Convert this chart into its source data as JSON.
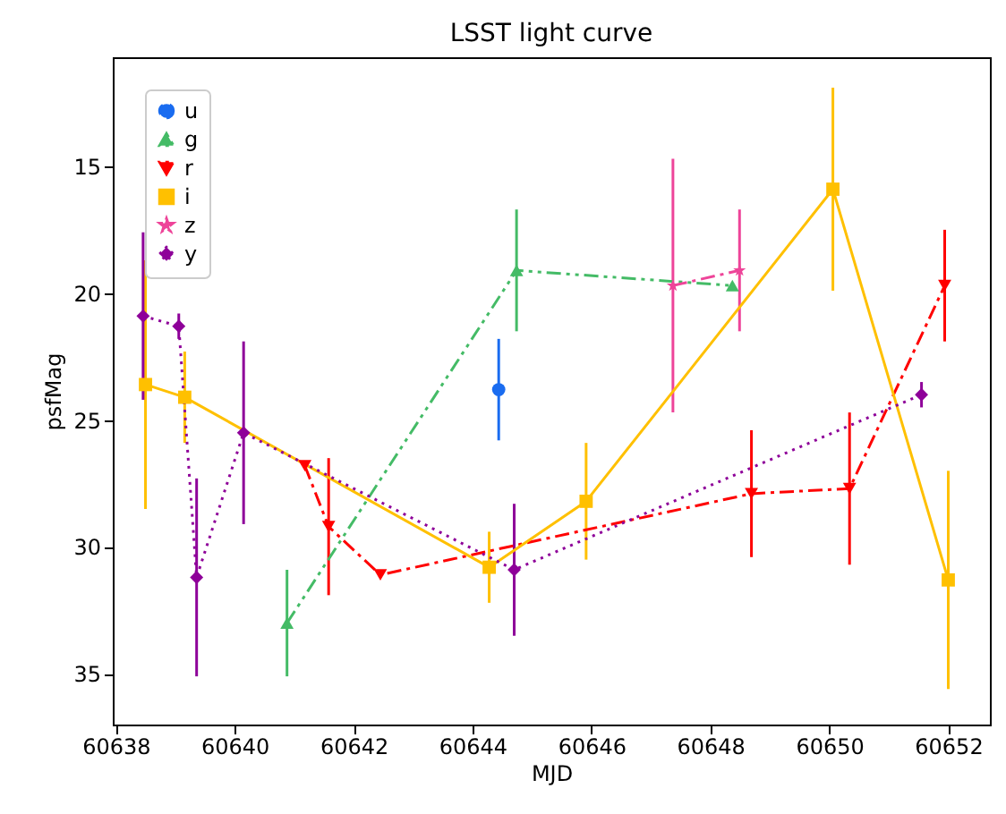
{
  "chart_data": {
    "type": "line",
    "title": "LSST light curve",
    "xlabel": "MJD",
    "ylabel": "psfMag",
    "xlim": [
      60637.95,
      60652.7
    ],
    "ylim": [
      37.0,
      10.7
    ],
    "xticks": [
      60638,
      60640,
      60642,
      60644,
      60646,
      60648,
      60650,
      60652
    ],
    "yticks": [
      15,
      20,
      25,
      30,
      35
    ],
    "grid": false,
    "legend": "top left",
    "series": [
      {
        "name": "u",
        "color": "#1a6cf0",
        "marker": "circle",
        "line_style": "dashed",
        "x": [
          60644.44
        ],
        "values": [
          23.8
        ],
        "errors": [
          2.0
        ]
      },
      {
        "name": "g",
        "color": "#44bb66",
        "marker": "triangle",
        "line_style": "dashdotdot",
        "x": [
          60640.88,
          60644.74,
          60648.37
        ],
        "values": [
          33.0,
          19.1,
          19.7
        ],
        "errors": [
          2.1,
          2.4,
          null
        ]
      },
      {
        "name": "r",
        "color": "#ff0000",
        "marker": "triangle-down",
        "line_style": "dashdot",
        "x": [
          60641.18,
          60641.58,
          60642.45,
          60648.69,
          60650.34,
          60651.94
        ],
        "values": [
          26.8,
          29.2,
          31.1,
          27.9,
          27.7,
          19.7
        ],
        "errors": [
          null,
          2.7,
          null,
          2.5,
          3.0,
          2.2
        ]
      },
      {
        "name": "i",
        "color": "#ffc000",
        "marker": "square",
        "line_style": "solid",
        "x": [
          60638.5,
          60639.16,
          60644.28,
          60645.91,
          60650.06,
          60652.0
        ],
        "values": [
          23.6,
          24.1,
          30.8,
          28.2,
          15.9,
          31.3
        ],
        "errors": [
          4.9,
          1.8,
          1.4,
          2.3,
          4.0,
          4.3
        ]
      },
      {
        "name": "z",
        "color": "#ee4499",
        "marker": "star",
        "line_style": "dashdot",
        "x": [
          60647.37,
          60648.49
        ],
        "values": [
          19.7,
          19.1
        ],
        "errors": [
          5.0,
          2.4
        ]
      },
      {
        "name": "y",
        "color": "#8e0099",
        "marker": "diamond",
        "line_style": "dotted",
        "x": [
          60638.46,
          60639.06,
          60639.36,
          60640.15,
          60644.7,
          60651.55
        ],
        "values": [
          20.9,
          21.3,
          31.2,
          25.5,
          30.9,
          24.0
        ],
        "errors": [
          3.3,
          0.5,
          3.9,
          3.6,
          2.6,
          0.5
        ]
      }
    ]
  }
}
